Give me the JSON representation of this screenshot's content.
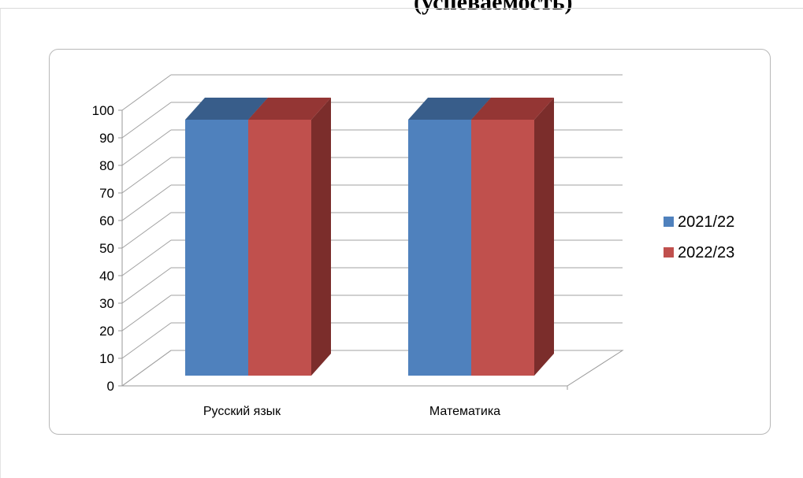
{
  "document": {
    "heading_fragment": "(успеваемость)"
  },
  "chart_data": {
    "type": "bar",
    "style": "3d-clustered-column",
    "title": "",
    "xlabel": "",
    "ylabel": "",
    "categories": [
      "Русский язык",
      "Математика"
    ],
    "series": [
      {
        "name": "2021/22",
        "values": [
          100,
          100
        ],
        "color": "#4f81bd",
        "top_color": "#385d8a",
        "side_color": "#30527a"
      },
      {
        "name": "2022/23",
        "values": [
          100,
          100
        ],
        "color": "#c0504d",
        "top_color": "#943634",
        "side_color": "#7b2d2b"
      }
    ],
    "y_ticks": [
      "0",
      "10",
      "20",
      "30",
      "40",
      "50",
      "60",
      "70",
      "80",
      "90",
      "100"
    ],
    "ylim": [
      0,
      100
    ],
    "grid": true,
    "legend_position": "right"
  }
}
